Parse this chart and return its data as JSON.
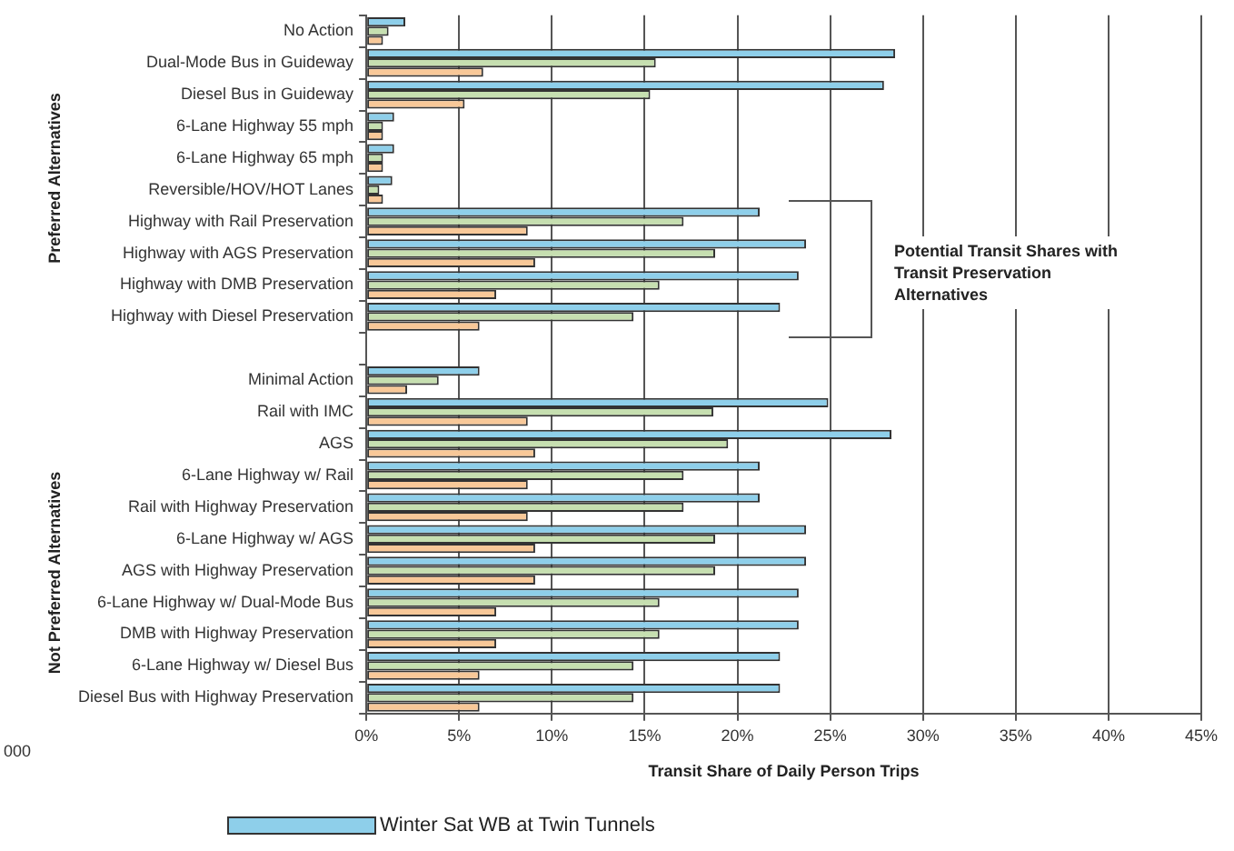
{
  "chart_data": {
    "type": "bar",
    "orientation": "horizontal",
    "xlabel": "Transit Share of Daily Person Trips",
    "categories": [
      "No Action",
      "Dual-Mode Bus in Guideway",
      "Diesel Bus in Guideway",
      "6-Lane Highway 55 mph",
      "6-Lane Highway 65 mph",
      "Reversible/HOV/HOT Lanes",
      "Highway with Rail Preservation",
      "Highway with AGS Preservation",
      "Highway with DMB Preservation",
      "Highway with Diesel Preservation",
      null,
      "Minimal Action",
      "Rail with IMC",
      "AGS",
      "6-Lane Highway w/ Rail",
      "Rail with Highway Preservation",
      "6-Lane Highway w/ AGS",
      "AGS with Highway Preservation",
      "6-Lane Highway w/ Dual-Mode Bus",
      "DMB with Highway Preservation",
      "6-Lane Highway w/ Diesel Bus",
      "Diesel Bus with Highway Preservation"
    ],
    "series": [
      {
        "name": "Winter Sat WB at Twin Tunnels",
        "color": "#8ecfea",
        "values": [
          2.1,
          28.5,
          27.9,
          1.5,
          1.5,
          1.4,
          21.2,
          23.7,
          23.3,
          22.3,
          null,
          6.1,
          24.9,
          28.3,
          21.2,
          21.2,
          23.7,
          23.7,
          23.3,
          23.3,
          22.3,
          22.3
        ]
      },
      {
        "color": "#c6dfb0",
        "values": [
          1.2,
          15.6,
          15.3,
          0.9,
          0.9,
          0.7,
          17.1,
          18.8,
          15.8,
          14.4,
          null,
          3.9,
          18.7,
          19.5,
          17.1,
          17.1,
          18.8,
          18.8,
          15.8,
          15.8,
          14.4,
          14.4
        ]
      },
      {
        "color": "#f8c898",
        "values": [
          0.9,
          6.3,
          5.3,
          0.9,
          0.9,
          0.9,
          8.7,
          9.1,
          7.0,
          6.1,
          null,
          2.2,
          8.7,
          9.1,
          8.7,
          8.7,
          9.1,
          9.1,
          7.0,
          7.0,
          6.1,
          6.1
        ]
      }
    ],
    "xlim": [
      0,
      45
    ],
    "xticks": [
      {
        "value": 0,
        "label": "0%"
      },
      {
        "value": 5,
        "label": "5%"
      },
      {
        "value": 10,
        "label": "10%"
      },
      {
        "value": 15,
        "label": "15%"
      },
      {
        "value": 20,
        "label": "20%"
      },
      {
        "value": 25,
        "label": "25%"
      },
      {
        "value": 30,
        "label": "30%"
      },
      {
        "value": 35,
        "label": "35%"
      },
      {
        "value": 40,
        "label": "40%"
      },
      {
        "value": 45,
        "label": "45%"
      }
    ],
    "grid": "x",
    "legend": "bottom",
    "annotations": [
      "Preferred Alternatives",
      "Not Preferred Alternatives",
      "Potential Transit Shares with Transit Preservation Alternatives",
      "000"
    ]
  }
}
